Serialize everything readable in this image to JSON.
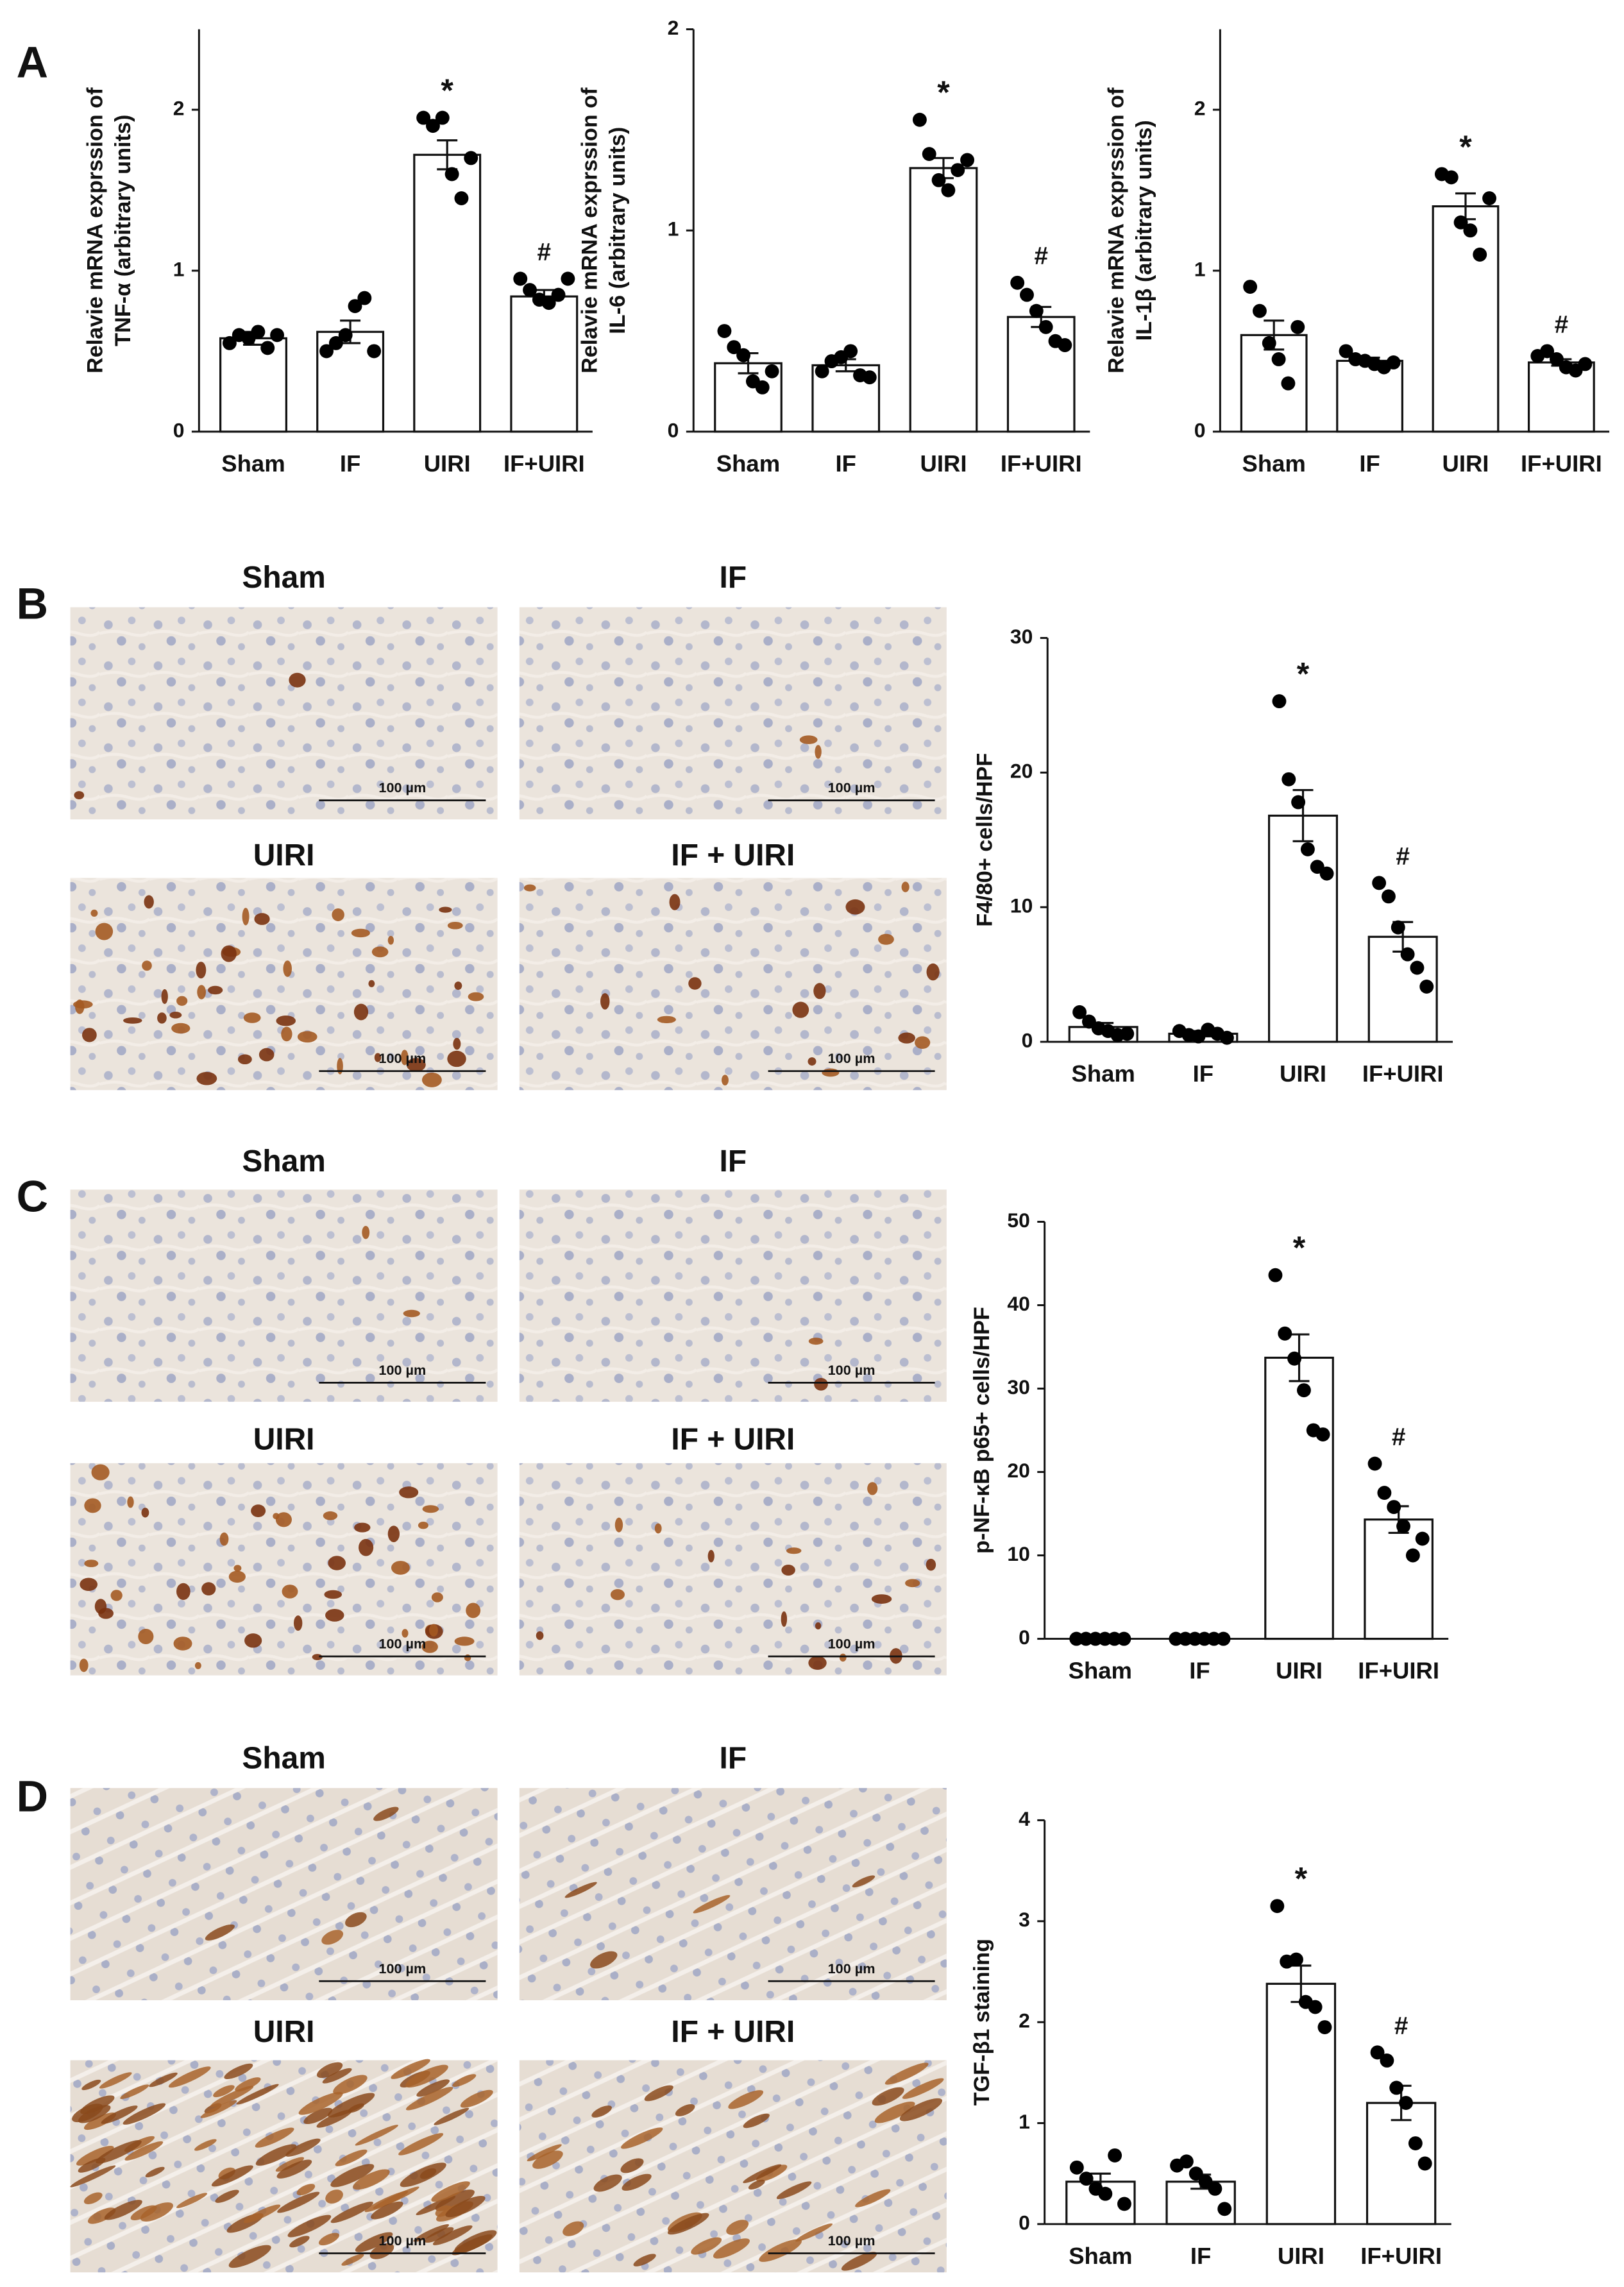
{
  "panel_labels": [
    "A",
    "B",
    "C",
    "D"
  ],
  "micrographs": [
    {
      "images": [
        {
          "label": "Sham",
          "scale_bar": "100 µm"
        },
        {
          "label": "IF",
          "scale_bar": "100 µm"
        },
        {
          "label": "UIRI",
          "scale_bar": "100 µm"
        },
        {
          "label": "IF + UIRI",
          "scale_bar": "100 µm"
        }
      ]
    },
    {
      "images": [
        {
          "label": "Sham",
          "scale_bar": "100 µm"
        },
        {
          "label": "IF",
          "scale_bar": "100 µm"
        },
        {
          "label": "UIRI",
          "scale_bar": "100 µm"
        },
        {
          "label": "IF + UIRI",
          "scale_bar": "100 µm"
        }
      ]
    },
    {
      "images": [
        {
          "label": "Sham",
          "scale_bar": "100 µm"
        },
        {
          "label": "IF",
          "scale_bar": "100 µm"
        },
        {
          "label": "UIRI",
          "scale_bar": "100 µm"
        },
        {
          "label": "IF + UIRI",
          "scale_bar": "100 µm"
        }
      ]
    }
  ],
  "chart_data": [
    {
      "type": "bar",
      "ylabel": [
        "Relavie mRNA exprssion of",
        "TNF-α (arbitrary units)"
      ],
      "categories": [
        "Sham",
        "IF",
        "UIRI",
        "IF+UIRI"
      ],
      "values": [
        0.58,
        0.62,
        1.72,
        0.84
      ],
      "errors": [
        0.04,
        0.07,
        0.09,
        0.04
      ],
      "points": [
        [
          0.55,
          0.6,
          0.58,
          0.62,
          0.52,
          0.6
        ],
        [
          0.5,
          0.55,
          0.6,
          0.78,
          0.83,
          0.5
        ],
        [
          1.95,
          1.9,
          1.95,
          1.6,
          1.45,
          1.7
        ],
        [
          0.95,
          0.88,
          0.82,
          0.8,
          0.85,
          0.95
        ]
      ],
      "markers": [
        null,
        null,
        "*",
        "#"
      ],
      "ylim": [
        0,
        2.5
      ],
      "yticks": [
        0,
        1,
        2
      ]
    },
    {
      "type": "bar",
      "ylabel": [
        "Relavie mRNA exprssion of",
        "IL-6 (arbitrary units)"
      ],
      "categories": [
        "Sham",
        "IF",
        "UIRI",
        "IF+UIRI"
      ],
      "values": [
        0.34,
        0.33,
        1.31,
        0.57
      ],
      "errors": [
        0.05,
        0.03,
        0.05,
        0.05
      ],
      "points": [
        [
          0.5,
          0.42,
          0.38,
          0.25,
          0.22,
          0.3
        ],
        [
          0.3,
          0.35,
          0.37,
          0.4,
          0.28,
          0.27
        ],
        [
          1.55,
          1.38,
          1.25,
          1.2,
          1.3,
          1.35
        ],
        [
          0.74,
          0.68,
          0.6,
          0.52,
          0.45,
          0.43
        ]
      ],
      "markers": [
        null,
        null,
        "*",
        "#"
      ],
      "ylim": [
        0,
        2
      ],
      "yticks": [
        0,
        1,
        2
      ]
    },
    {
      "type": "bar",
      "ylabel": [
        "Relavie mRNA exprssion of",
        "IL-1β (arbitrary units)"
      ],
      "categories": [
        "Sham",
        "IF",
        "UIRI",
        "IF+UIRI"
      ],
      "values": [
        0.6,
        0.44,
        1.4,
        0.43
      ],
      "errors": [
        0.09,
        0.02,
        0.08,
        0.02
      ],
      "points": [
        [
          0.9,
          0.75,
          0.55,
          0.45,
          0.3,
          0.65
        ],
        [
          0.5,
          0.45,
          0.44,
          0.42,
          0.4,
          0.43
        ],
        [
          1.6,
          1.58,
          1.3,
          1.25,
          1.1,
          1.45
        ],
        [
          0.47,
          0.5,
          0.45,
          0.4,
          0.38,
          0.42
        ]
      ],
      "markers": [
        null,
        null,
        "*",
        "#"
      ],
      "ylim": [
        0,
        2.5
      ],
      "yticks": [
        0,
        1,
        2
      ]
    },
    {
      "type": "bar",
      "ylabel": [
        "F4/80+ cells/HPF"
      ],
      "categories": [
        "Sham",
        "IF",
        "UIRI",
        "IF+UIRI"
      ],
      "values": [
        1.1,
        0.6,
        16.8,
        7.8
      ],
      "errors": [
        0.3,
        0.2,
        1.9,
        1.1
      ],
      "points": [
        [
          2.2,
          1.5,
          1,
          0.8,
          0.5,
          0.6
        ],
        [
          0.8,
          0.5,
          0.4,
          0.9,
          0.6,
          0.3
        ],
        [
          25.3,
          19.5,
          17.8,
          14.3,
          13,
          12.5
        ],
        [
          11.8,
          10.8,
          8.5,
          6.5,
          5.5,
          4.1
        ]
      ],
      "markers": [
        null,
        null,
        "*",
        "#"
      ],
      "ylim": [
        0,
        30
      ],
      "yticks": [
        0,
        10,
        20,
        30
      ]
    },
    {
      "type": "bar",
      "ylabel": [
        "p-NF-κB p65+ cells/HPF"
      ],
      "categories": [
        "Sham",
        "IF",
        "UIRI",
        "IF+UIRI"
      ],
      "values": [
        0,
        0,
        33.7,
        14.3
      ],
      "errors": [
        0,
        0,
        2.8,
        1.6
      ],
      "points": [
        [
          0,
          0,
          0,
          0,
          0,
          0
        ],
        [
          0,
          0,
          0,
          0,
          0,
          0
        ],
        [
          43.6,
          36.6,
          33.6,
          29.8,
          25,
          24.5
        ],
        [
          21,
          17.5,
          15.8,
          13.5,
          10,
          12
        ]
      ],
      "markers": [
        null,
        null,
        "*",
        "#"
      ],
      "ylim": [
        0,
        50
      ],
      "yticks": [
        0,
        10,
        20,
        30,
        40,
        50
      ]
    },
    {
      "type": "bar",
      "ylabel": [
        "TGF-β1  staining"
      ],
      "categories": [
        "Sham",
        "IF",
        "UIRI",
        "IF+UIRI"
      ],
      "values": [
        0.42,
        0.42,
        2.38,
        1.2
      ],
      "errors": [
        0.08,
        0.07,
        0.18,
        0.17
      ],
      "points": [
        [
          0.56,
          0.45,
          0.35,
          0.3,
          0.68,
          0.2
        ],
        [
          0.58,
          0.62,
          0.5,
          0.42,
          0.35,
          0.15
        ],
        [
          3.15,
          2.6,
          2.62,
          2.2,
          2.15,
          1.95
        ],
        [
          1.7,
          1.62,
          1.35,
          1.2,
          0.8,
          0.6
        ]
      ],
      "markers": [
        null,
        null,
        "*",
        "#"
      ],
      "ylim": [
        0,
        4
      ],
      "yticks": [
        0,
        1,
        2,
        3,
        4
      ]
    }
  ]
}
